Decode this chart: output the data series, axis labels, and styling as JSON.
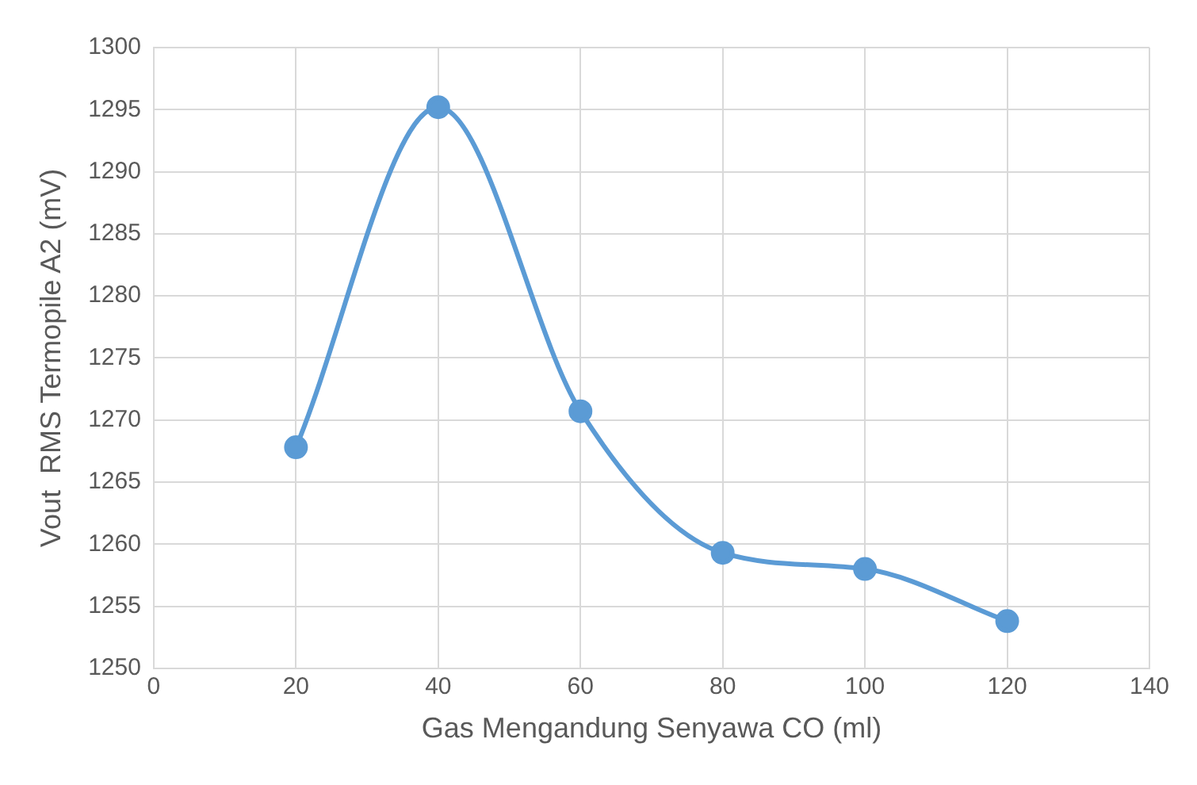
{
  "chart_data": {
    "type": "line",
    "xlabel": "Gas Mengandung Senyawa CO (ml)",
    "ylabel": "Vout  RMS Termopile A2 (mV)",
    "x": [
      20,
      40,
      60,
      80,
      100,
      120
    ],
    "series": [
      {
        "color": "#5b9bd5",
        "values": [
          1267.8,
          1295.2,
          1270.7,
          1259.3,
          1258.0,
          1253.8
        ]
      }
    ],
    "xlim": [
      0,
      140
    ],
    "xticks": [
      0,
      20,
      40,
      60,
      80,
      100,
      120,
      140
    ],
    "ylim": [
      1250,
      1300
    ],
    "yticks": [
      1250,
      1255,
      1260,
      1265,
      1270,
      1275,
      1280,
      1285,
      1290,
      1295,
      1300
    ],
    "grid": true,
    "marker": "circle",
    "line_style": "solid",
    "legend": false
  }
}
